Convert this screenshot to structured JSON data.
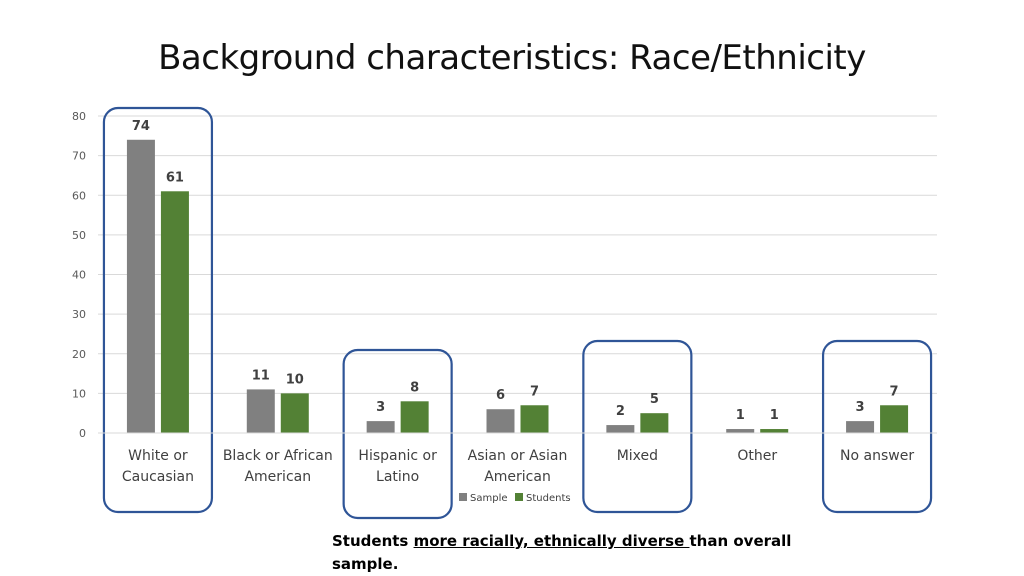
{
  "title": "Background characteristics: Race/Ethnicity",
  "caption": {
    "before": "Students ",
    "underlined": "more racially, ethnically diverse ",
    "after": "than overall sample."
  },
  "colors": {
    "sample": "#808080",
    "students": "#538135",
    "highlight_box": "#2f5597",
    "grid": "#d9d9d9",
    "axis_text": "#595959",
    "label_text": "#404040"
  },
  "chart_data": {
    "type": "bar",
    "title": "Background characteristics: Race/Ethnicity",
    "categories": [
      [
        "White or",
        "Caucasian"
      ],
      [
        "Black or African",
        "American"
      ],
      [
        "Hispanic or",
        "Latino"
      ],
      [
        "Asian or Asian",
        "American"
      ],
      [
        "Mixed"
      ],
      [
        "Other"
      ],
      [
        "No answer"
      ]
    ],
    "series": [
      {
        "name": "Sample",
        "values": [
          74,
          11,
          3,
          6,
          2,
          1,
          3
        ]
      },
      {
        "name": "Students",
        "values": [
          61,
          10,
          8,
          7,
          5,
          1,
          7
        ]
      }
    ],
    "ylim": [
      0,
      80
    ],
    "yticks": [
      0,
      10,
      20,
      30,
      40,
      50,
      60,
      70,
      80
    ],
    "grid": true,
    "legend": "bottom-center",
    "highlighted_categories": [
      0,
      2,
      4,
      6
    ],
    "xlabel": "",
    "ylabel": ""
  }
}
